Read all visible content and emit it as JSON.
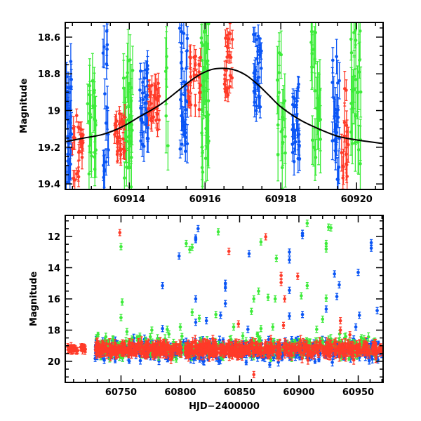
{
  "colors": {
    "blue": "#0a55f5",
    "red": "#ff3a28",
    "green": "#3deb3a",
    "model": "#000000"
  },
  "chart_data": [
    {
      "type": "scatter",
      "title": "",
      "xlabel": "",
      "ylabel": "Magnitude",
      "xlim": [
        60912.31,
        60920.7
      ],
      "ylim": [
        19.43,
        18.52
      ],
      "y_inverted": true,
      "xticks": [
        "60914",
        "60916",
        "60918",
        "60920"
      ],
      "yticks": [
        "18.6",
        "18.8",
        "19",
        "19.2",
        "19.4"
      ],
      "model_curve": {
        "name": "model",
        "x": [
          60912.31,
          60912.8,
          60913.3,
          60913.8,
          60914.3,
          60914.8,
          60915.3,
          60915.6,
          60915.9,
          60916.2,
          60916.5,
          60916.8,
          60917.1,
          60917.4,
          60917.7,
          60918.0,
          60918.5,
          60919.0,
          60919.5,
          60920.0,
          60920.7
        ],
        "y": [
          19.17,
          19.15,
          19.13,
          19.09,
          19.03,
          18.97,
          18.89,
          18.84,
          18.8,
          18.775,
          18.77,
          18.78,
          18.81,
          18.86,
          18.92,
          18.98,
          19.05,
          19.1,
          19.14,
          19.16,
          19.18
        ]
      },
      "series": [
        {
          "name": "blue",
          "clusters": [
            {
              "x": [
                60912.33,
                60912.48
              ],
              "y": [
                18.72,
                19.42
              ],
              "n": 26,
              "err": 0.09
            },
            {
              "x": [
                60913.28,
                60913.45
              ],
              "y": [
                18.55,
                19.42
              ],
              "n": 16,
              "err": 0.1
            },
            {
              "x": [
                60914.28,
                60914.5
              ],
              "y": [
                18.75,
                19.2
              ],
              "n": 30,
              "err": 0.06
            },
            {
              "x": [
                60915.33,
                60915.55
              ],
              "y": [
                18.55,
                19.3
              ],
              "n": 28,
              "err": 0.08
            },
            {
              "x": [
                60917.28,
                60917.52
              ],
              "y": [
                18.58,
                19.05
              ],
              "n": 28,
              "err": 0.06
            },
            {
              "x": [
                60918.3,
                60918.5
              ],
              "y": [
                18.85,
                19.28
              ],
              "n": 26,
              "err": 0.06
            },
            {
              "x": [
                60919.35,
                60919.55
              ],
              "y": [
                18.7,
                19.42
              ],
              "n": 24,
              "err": 0.09
            }
          ]
        },
        {
          "name": "red",
          "clusters": [
            {
              "x": [
                60912.5,
                60912.8
              ],
              "y": [
                19.0,
                19.4
              ],
              "n": 22,
              "err": 0.05
            },
            {
              "x": [
                60913.6,
                60913.9
              ],
              "y": [
                18.95,
                19.25
              ],
              "n": 28,
              "err": 0.05
            },
            {
              "x": [
                60914.5,
                60914.8
              ],
              "y": [
                18.85,
                19.12
              ],
              "n": 26,
              "err": 0.05
            },
            {
              "x": [
                60915.55,
                60915.9
              ],
              "y": [
                18.7,
                19.0
              ],
              "n": 26,
              "err": 0.05
            },
            {
              "x": [
                60916.5,
                60916.72
              ],
              "y": [
                18.55,
                18.92
              ],
              "n": 24,
              "err": 0.04
            },
            {
              "x": [
                60919.6,
                60919.78
              ],
              "y": [
                18.88,
                19.42
              ],
              "n": 16,
              "err": 0.08
            }
          ]
        },
        {
          "name": "green",
          "clusters": [
            {
              "x": [
                60912.9,
                60913.12
              ],
              "y": [
                18.78,
                19.42
              ],
              "n": 22,
              "err": 0.13
            },
            {
              "x": [
                60913.85,
                60914.1
              ],
              "y": [
                18.62,
                19.42
              ],
              "n": 30,
              "err": 0.13
            },
            {
              "x": [
                60914.95,
                60915.05
              ],
              "y": [
                18.7,
                19.4
              ],
              "n": 6,
              "err": 0.15
            },
            {
              "x": [
                60915.85,
                60916.1
              ],
              "y": [
                18.5,
                19.35
              ],
              "n": 30,
              "err": 0.15
            },
            {
              "x": [
                60917.9,
                60918.12
              ],
              "y": [
                18.65,
                19.38
              ],
              "n": 16,
              "err": 0.15
            },
            {
              "x": [
                60918.8,
                60919.05
              ],
              "y": [
                18.55,
                19.32
              ],
              "n": 22,
              "err": 0.15
            },
            {
              "x": [
                60919.85,
                60920.12
              ],
              "y": [
                18.5,
                19.32
              ],
              "n": 26,
              "err": 0.15
            }
          ]
        }
      ]
    },
    {
      "type": "scatter",
      "title": "",
      "xlabel": "HJD−2400000",
      "ylabel": "Magnitude",
      "xlim": [
        60703,
        60971
      ],
      "ylim": [
        21.35,
        10.65
      ],
      "y_inverted": true,
      "xticks": [
        "60750",
        "60800",
        "60850",
        "60900",
        "60950"
      ],
      "yticks": [
        "12",
        "14",
        "16",
        "18",
        "20"
      ],
      "series": [
        {
          "name": "blue",
          "band": {
            "x": [
              60728,
              60970
            ],
            "mag": 19.3,
            "scatter": 0.45,
            "n": 520,
            "err": 0.2
          },
          "points": [
            [
              60785,
              15.15
            ],
            [
              60799,
              13.25
            ],
            [
              60813,
              12.1
            ],
            [
              60813,
              12.2
            ],
            [
              60815,
              11.5
            ],
            [
              60813,
              16.0
            ],
            [
              60838,
              15.0
            ],
            [
              60838,
              15.3
            ],
            [
              60838,
              16.3
            ],
            [
              60858,
              13.1
            ],
            [
              60892,
              13.0
            ],
            [
              60892,
              13.5
            ],
            [
              60892,
              15.45
            ],
            [
              60903,
              11.8
            ],
            [
              60903,
              11.95
            ],
            [
              60930,
              14.4
            ],
            [
              60950,
              14.3
            ],
            [
              60961,
              12.4
            ],
            [
              60961,
              12.75
            ],
            [
              60966,
              16.75
            ],
            [
              60934,
              15.1
            ],
            [
              60932,
              15.85
            ],
            [
              60923,
              16.65
            ],
            [
              60951,
              17.05
            ],
            [
              60834,
              17.05
            ],
            [
              60822,
              17.4
            ],
            [
              60892,
              17.1
            ],
            [
              60903,
              17.0
            ],
            [
              60813,
              17.5
            ],
            [
              60857,
              17.95
            ],
            [
              60785,
              17.9
            ],
            [
              60948,
              17.8
            ]
          ]
        },
        {
          "name": "green",
          "band": {
            "x": [
              60728,
              60968
            ],
            "mag": 19.1,
            "scatter": 0.5,
            "n": 330,
            "err": 0.2
          },
          "points": [
            [
              60750,
              12.65
            ],
            [
              60751,
              16.2
            ],
            [
              60750,
              17.2
            ],
            [
              60755,
              18.1
            ],
            [
              60805,
              12.45
            ],
            [
              60808,
              12.85
            ],
            [
              60810,
              12.7
            ],
            [
              60832,
              11.7
            ],
            [
              60868,
              12.35
            ],
            [
              60881,
              13.4
            ],
            [
              60907,
              11.15
            ],
            [
              60925,
              11.4
            ],
            [
              60927,
              11.45
            ],
            [
              60923,
              12.45
            ],
            [
              60923,
              12.8
            ],
            [
              60880,
              16.0
            ],
            [
              60874,
              15.9
            ],
            [
              60866,
              15.5
            ],
            [
              60862,
              16.0
            ],
            [
              60907,
              15.15
            ],
            [
              60923,
              15.95
            ],
            [
              60810,
              16.85
            ],
            [
              60830,
              17.0
            ],
            [
              60860,
              16.8
            ],
            [
              60902,
              15.8
            ],
            [
              60816,
              17.25
            ],
            [
              60845,
              17.8
            ],
            [
              60868,
              17.9
            ],
            [
              60878,
              17.8
            ],
            [
              60800,
              17.8
            ],
            [
              60776,
              18.0
            ],
            [
              60789,
              17.95
            ],
            [
              60915,
              17.95
            ],
            [
              60920,
              17.3
            ]
          ]
        },
        {
          "name": "red",
          "band": {
            "x": [
              60728,
              60970
            ],
            "mag": 19.25,
            "scatter": 0.32,
            "n": 700,
            "err": 0.25
          },
          "early": {
            "x": [
              60705,
              60720
            ],
            "mag": 19.2,
            "scatter": 0.15,
            "n": 40,
            "err": 0.2
          },
          "points": [
            [
              60749,
              11.75
            ],
            [
              60841,
              12.95
            ],
            [
              60872,
              12.02
            ],
            [
              60885,
              14.5
            ],
            [
              60885,
              14.95
            ],
            [
              60888,
              16.0
            ],
            [
              60899,
              14.55
            ],
            [
              60849,
              17.6
            ],
            [
              60887,
              17.7
            ],
            [
              60935,
              17.4
            ],
            [
              60935,
              18.0
            ],
            [
              60943,
              18.3
            ],
            [
              60862,
              20.85
            ]
          ]
        }
      ]
    }
  ]
}
